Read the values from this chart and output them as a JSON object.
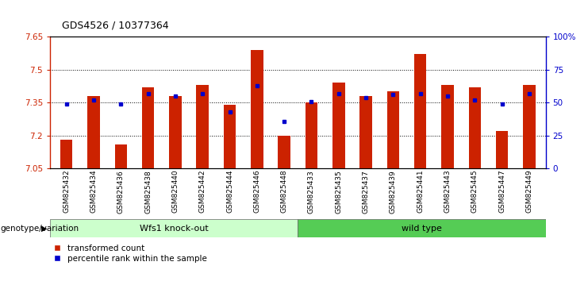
{
  "title": "GDS4526 / 10377364",
  "samples": [
    "GSM825432",
    "GSM825434",
    "GSM825436",
    "GSM825438",
    "GSM825440",
    "GSM825442",
    "GSM825444",
    "GSM825446",
    "GSM825448",
    "GSM825433",
    "GSM825435",
    "GSM825437",
    "GSM825439",
    "GSM825441",
    "GSM825443",
    "GSM825445",
    "GSM825447",
    "GSM825449"
  ],
  "red_values": [
    7.18,
    7.38,
    7.16,
    7.42,
    7.38,
    7.43,
    7.34,
    7.59,
    7.2,
    7.35,
    7.44,
    7.38,
    7.4,
    7.57,
    7.43,
    7.42,
    7.22,
    7.43
  ],
  "blue_values": [
    49,
    52,
    49,
    57,
    55,
    57,
    43,
    63,
    36,
    51,
    57,
    54,
    56,
    57,
    55,
    52,
    49,
    57
  ],
  "group1_label": "Wfs1 knock-out",
  "group2_label": "wild type",
  "group1_count": 9,
  "group2_count": 9,
  "ylim_left": [
    7.05,
    7.65
  ],
  "ylim_right": [
    0,
    100
  ],
  "yticks_left": [
    7.05,
    7.2,
    7.35,
    7.5,
    7.65
  ],
  "yticks_right": [
    0,
    25,
    50,
    75,
    100
  ],
  "ytick_labels_right": [
    "0",
    "25",
    "50",
    "75",
    "100%"
  ],
  "hlines": [
    7.2,
    7.35,
    7.5
  ],
  "bar_color": "#cc2200",
  "dot_color": "#0000cc",
  "bar_width": 0.45,
  "group1_bg": "#ccffcc",
  "group2_bg": "#55cc55",
  "legend_label1": "transformed count",
  "legend_label2": "percentile rank within the sample",
  "left_axis_color": "#cc2200",
  "right_axis_color": "#0000cc"
}
